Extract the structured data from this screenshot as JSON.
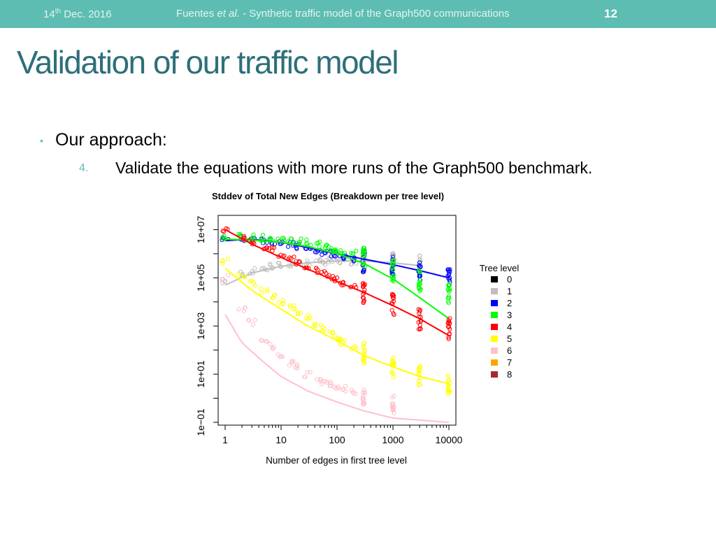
{
  "header": {
    "date_day": "14",
    "date_suffix": "th",
    "date_rest": " Dec. 2016",
    "authors": "Fuentes ",
    "etal": "et al.",
    "paper_title": " - Synthetic traffic model of the Graph500 communications",
    "page_number": "12"
  },
  "slide": {
    "title": "Validation of our traffic model",
    "bullet": "Our approach:",
    "sub_number": "4.",
    "sub_text": "Validate the equations with more runs of the Graph500 benchmark."
  },
  "chart_data": {
    "type": "scatter",
    "title": "Stddev of Total New Edges (Breakdown per tree level)",
    "xlabel": "Number of edges in first tree level",
    "ylabel": "",
    "x_scale": "log",
    "y_scale": "log",
    "xlim": [
      1,
      10000
    ],
    "ylim": [
      0.1,
      30000000
    ],
    "x_ticks": [
      "1",
      "10",
      "100",
      "1000",
      "10000"
    ],
    "y_ticks": [
      "1e−01",
      "1e+01",
      "1e+03",
      "1e+05",
      "1e+07"
    ],
    "legend_title": "Tree level",
    "legend_position": "right",
    "legend": [
      {
        "name": "0",
        "color": "#000000"
      },
      {
        "name": "1",
        "color": "#bebebe"
      },
      {
        "name": "2",
        "color": "#0000ff"
      },
      {
        "name": "3",
        "color": "#00ff00"
      },
      {
        "name": "4",
        "color": "#ff0000"
      },
      {
        "name": "5",
        "color": "#ffff00"
      },
      {
        "name": "6",
        "color": "#ffc0cb"
      },
      {
        "name": "7",
        "color": "#ffa500"
      },
      {
        "name": "8",
        "color": "#a52a2a"
      }
    ],
    "series": [
      {
        "name": "1",
        "color": "#bebebe",
        "points": [
          [
            1,
            70000
          ],
          [
            2,
            150000
          ],
          [
            5,
            250000
          ],
          [
            10,
            330000
          ],
          [
            20,
            400000
          ],
          [
            50,
            450000
          ],
          [
            100,
            500000
          ],
          [
            200,
            480000
          ],
          [
            500,
            450000
          ],
          [
            1000,
            400000
          ],
          [
            3000,
            300000
          ]
        ],
        "fit": [
          [
            1,
            50000
          ],
          [
            3,
            160000
          ],
          [
            10,
            300000
          ],
          [
            30,
            420000
          ],
          [
            100,
            500000
          ],
          [
            300,
            500000
          ],
          [
            1000,
            420000
          ],
          [
            3000,
            320000
          ]
        ]
      },
      {
        "name": "2",
        "color": "#0000ff",
        "points": [
          [
            1,
            4000000
          ],
          [
            3,
            4200000
          ],
          [
            10,
            3000000
          ],
          [
            30,
            1500000
          ],
          [
            100,
            900000
          ],
          [
            300,
            500000
          ],
          [
            1000,
            300000
          ],
          [
            3000,
            200000
          ],
          [
            10000,
            120000
          ]
        ],
        "fit": [
          [
            1,
            3500000
          ],
          [
            3,
            4000000
          ],
          [
            10,
            3000000
          ],
          [
            30,
            1800000
          ],
          [
            100,
            1000000
          ],
          [
            300,
            600000
          ],
          [
            1000,
            350000
          ],
          [
            3000,
            200000
          ],
          [
            10000,
            100000
          ]
        ]
      },
      {
        "name": "3",
        "color": "#00ff00",
        "points": [
          [
            1,
            5000000
          ],
          [
            3,
            5000000
          ],
          [
            10,
            4000000
          ],
          [
            30,
            3000000
          ],
          [
            100,
            1500000
          ],
          [
            300,
            800000
          ],
          [
            1000,
            200000
          ],
          [
            3000,
            80000
          ],
          [
            10000,
            20000
          ]
        ],
        "fit": [
          [
            1,
            4000000
          ],
          [
            3,
            3700000
          ],
          [
            10,
            3000000
          ],
          [
            30,
            2000000
          ],
          [
            100,
            1000000
          ],
          [
            300,
            400000
          ],
          [
            1000,
            90000
          ],
          [
            3000,
            15000
          ],
          [
            10000,
            2000
          ]
        ]
      },
      {
        "name": "4",
        "color": "#ff0000",
        "points": [
          [
            1,
            10000000
          ],
          [
            3,
            3000000
          ],
          [
            10,
            1000000
          ],
          [
            30,
            300000
          ],
          [
            100,
            80000
          ],
          [
            300,
            25000
          ],
          [
            1000,
            8000
          ],
          [
            3000,
            2000
          ],
          [
            10000,
            800
          ]
        ],
        "fit": [
          [
            1,
            10000000
          ],
          [
            3,
            2500000
          ],
          [
            10,
            700000
          ],
          [
            30,
            230000
          ],
          [
            100,
            70000
          ],
          [
            300,
            25000
          ],
          [
            1000,
            7000
          ],
          [
            3000,
            2000
          ],
          [
            10000,
            400
          ]
        ]
      },
      {
        "name": "5",
        "color": "#ffff00",
        "points": [
          [
            1,
            500000
          ],
          [
            3,
            60000
          ],
          [
            10,
            10000
          ],
          [
            30,
            2500
          ],
          [
            100,
            300
          ],
          [
            300,
            80
          ],
          [
            1000,
            20
          ],
          [
            3000,
            8
          ],
          [
            10000,
            4
          ]
        ],
        "fit": [
          [
            1,
            250000
          ],
          [
            3,
            30000
          ],
          [
            10,
            5000
          ],
          [
            30,
            1000
          ],
          [
            100,
            250
          ],
          [
            300,
            60
          ],
          [
            1000,
            20
          ],
          [
            3000,
            8
          ],
          [
            10000,
            4
          ]
        ]
      },
      {
        "name": "6",
        "color": "#ffc0cb",
        "points": [
          [
            1,
            100000
          ],
          [
            2,
            5000
          ],
          [
            5,
            300
          ],
          [
            10,
            60
          ],
          [
            30,
            10
          ],
          [
            100,
            3
          ],
          [
            300,
            1.2
          ],
          [
            1000,
            0.5
          ]
        ],
        "fit": [
          [
            1,
            3000
          ],
          [
            2,
            200
          ],
          [
            5,
            30
          ],
          [
            10,
            8
          ],
          [
            30,
            2
          ],
          [
            100,
            0.7
          ],
          [
            300,
            0.3
          ],
          [
            1000,
            0.15
          ],
          [
            10000,
            0.1
          ]
        ]
      }
    ]
  }
}
